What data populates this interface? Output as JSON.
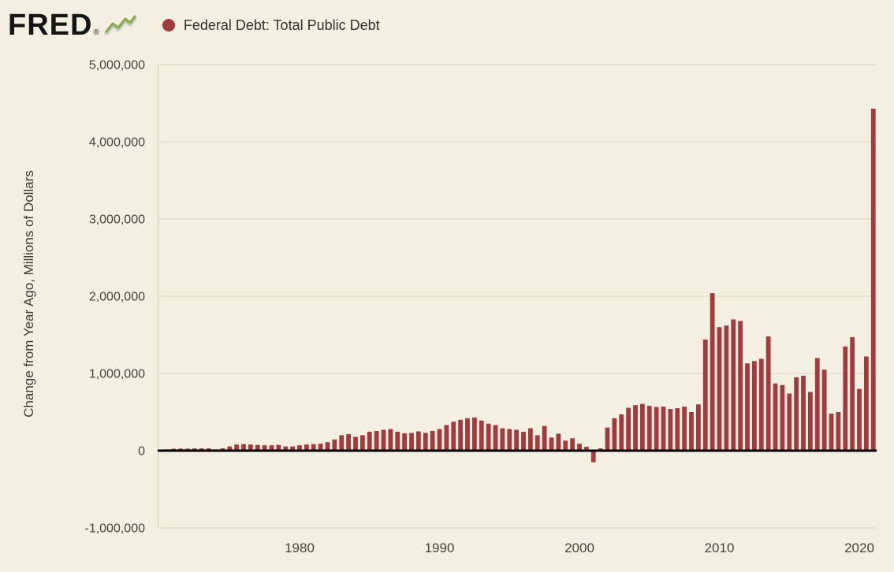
{
  "header": {
    "logo_text": "FRED",
    "registered_mark": "®",
    "legend_label": "Federal Debt: Total Public Debt"
  },
  "chart_data": {
    "type": "bar",
    "title": "Federal Debt: Total Public Debt",
    "ylabel": "Change from Year Ago, Millions of Dollars",
    "xlabel": "",
    "ylim": [
      -1000000,
      5000000
    ],
    "xlim": [
      1969.5,
      2021.5
    ],
    "grid": true,
    "legend_position": "top-left",
    "bar_color": "#a23b3d",
    "background_color": "#f3f0e2",
    "gridline_color": "#d8d4c3",
    "zero_line_color": "#000000",
    "tick_label_color": "#45433b",
    "ytick_values": [
      5000000,
      4000000,
      3000000,
      2000000,
      1000000,
      0,
      -1000000
    ],
    "ytick_labels": [
      "5,000,000",
      "4,000,000",
      "3,000,000",
      "2,000,000",
      "1,000,000",
      "0",
      "-1,000,000"
    ],
    "xtick_values": [
      1980,
      1990,
      2000,
      2010,
      2020
    ],
    "xtick_labels": [
      "1980",
      "1990",
      "2000",
      "2010",
      "2020"
    ],
    "x_start": 1970,
    "x_step": 0.5,
    "series": [
      {
        "name": "Federal Debt: Total Public Debt",
        "values": [
          15000,
          17000,
          25000,
          27000,
          27000,
          29000,
          30000,
          30000,
          17000,
          30000,
          55000,
          80000,
          85000,
          80000,
          75000,
          70000,
          70000,
          75000,
          55000,
          55000,
          70000,
          80000,
          85000,
          90000,
          110000,
          145000,
          200000,
          215000,
          180000,
          200000,
          245000,
          255000,
          270000,
          280000,
          245000,
          225000,
          230000,
          250000,
          230000,
          255000,
          280000,
          330000,
          375000,
          400000,
          420000,
          430000,
          390000,
          350000,
          330000,
          290000,
          280000,
          270000,
          245000,
          290000,
          200000,
          320000,
          170000,
          220000,
          130000,
          160000,
          90000,
          50000,
          -150000,
          30000,
          300000,
          420000,
          470000,
          555000,
          590000,
          605000,
          580000,
          565000,
          570000,
          540000,
          550000,
          570000,
          500000,
          600000,
          1440000,
          2040000,
          1600000,
          1620000,
          1700000,
          1680000,
          1130000,
          1160000,
          1190000,
          1480000,
          870000,
          850000,
          740000,
          950000,
          970000,
          760000,
          1200000,
          1050000,
          480000,
          500000,
          1350000,
          1470000,
          800000,
          1220000,
          4430000
        ]
      }
    ]
  }
}
